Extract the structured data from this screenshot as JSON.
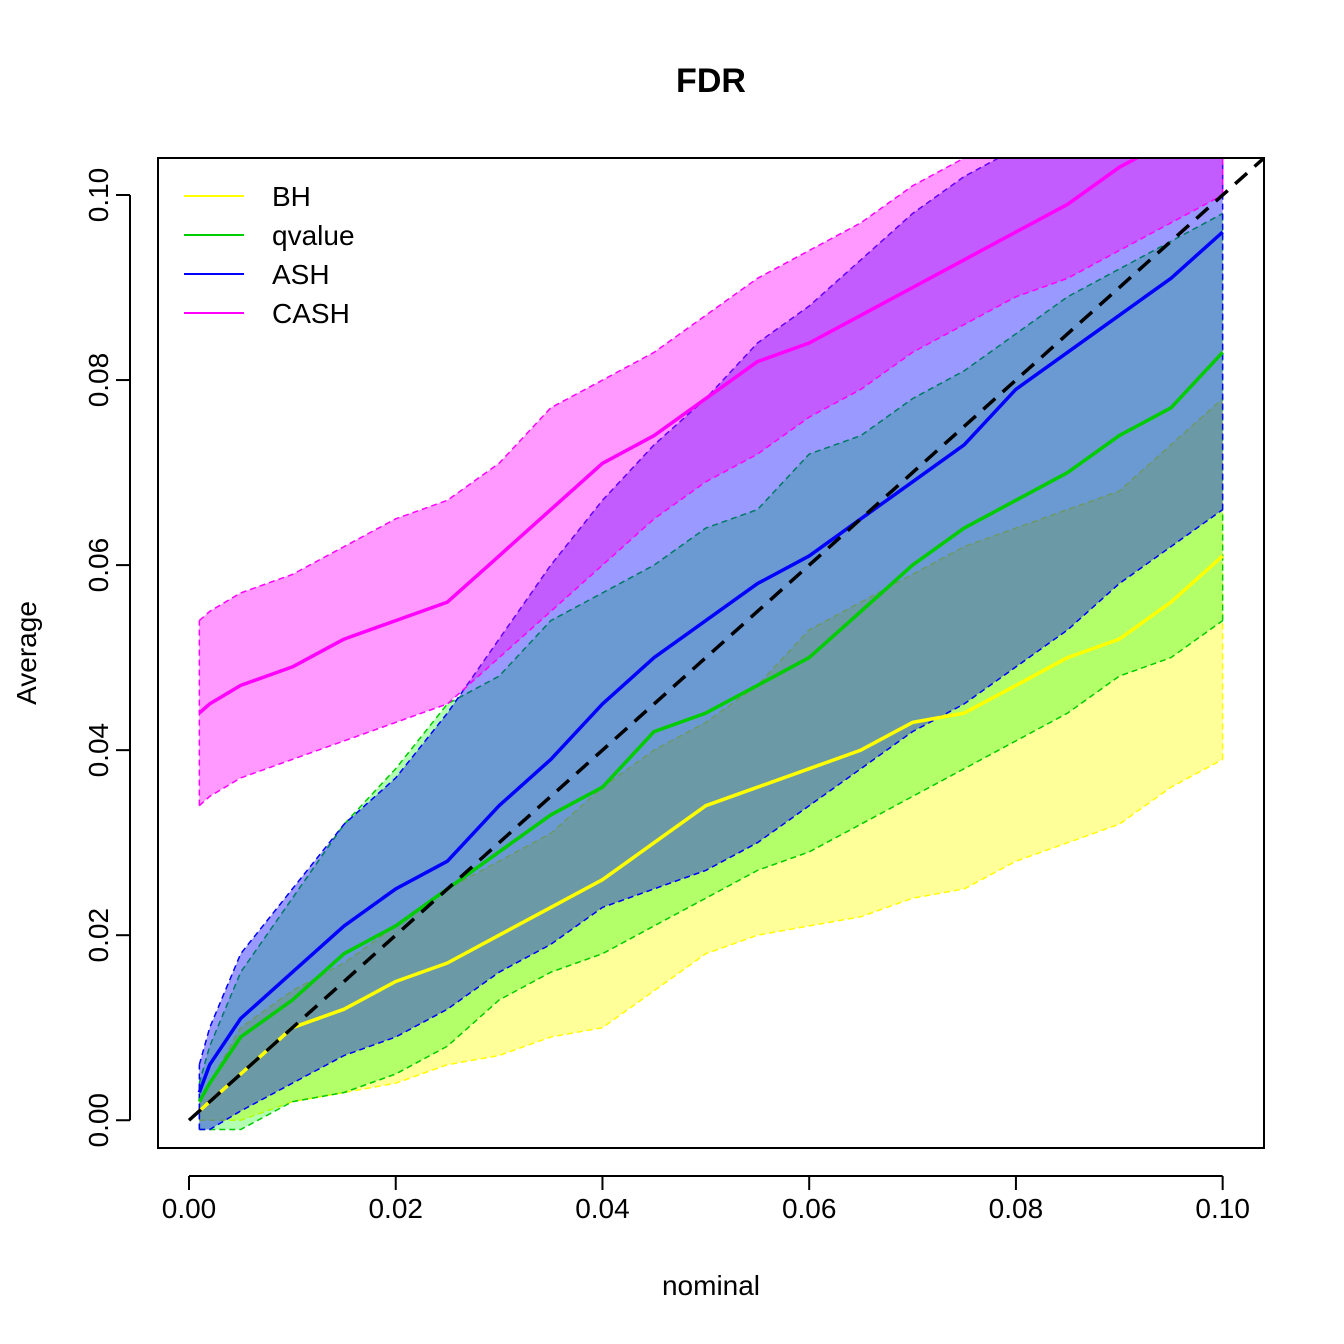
{
  "chart_data": {
    "type": "area",
    "title": "FDR",
    "xlabel": "nominal",
    "ylabel": "Average",
    "xlim": [
      -0.003,
      0.104
    ],
    "ylim": [
      -0.003,
      0.104
    ],
    "xticks": [
      0.0,
      0.02,
      0.04,
      0.06,
      0.08,
      0.1
    ],
    "xtick_labels": [
      "0.00",
      "0.02",
      "0.04",
      "0.06",
      "0.08",
      "0.10"
    ],
    "yticks": [
      0.0,
      0.02,
      0.04,
      0.06,
      0.08,
      0.1
    ],
    "ytick_labels": [
      "0.00",
      "0.02",
      "0.04",
      "0.06",
      "0.08",
      "0.10"
    ],
    "grid": false,
    "legend_position": "top-left",
    "reference_line": {
      "style": "dashed",
      "color": "#000000",
      "x": [
        0.0,
        0.104
      ],
      "y": [
        0.0,
        0.104
      ]
    },
    "x": [
      0.001,
      0.002,
      0.005,
      0.01,
      0.015,
      0.02,
      0.025,
      0.03,
      0.035,
      0.04,
      0.045,
      0.05,
      0.055,
      0.06,
      0.065,
      0.07,
      0.075,
      0.08,
      0.085,
      0.09,
      0.095,
      0.1
    ],
    "series": [
      {
        "name": "BH",
        "color": "#ffff00",
        "fill": "rgba(255,255,0,0.40)",
        "mean": [
          0.001,
          0.002,
          0.005,
          0.01,
          0.012,
          0.015,
          0.017,
          0.02,
          0.023,
          0.026,
          0.03,
          0.034,
          0.036,
          0.038,
          0.04,
          0.043,
          0.044,
          0.047,
          0.05,
          0.052,
          0.056,
          0.061
        ],
        "lower": [
          0.0,
          0.0,
          0.0,
          0.002,
          0.003,
          0.004,
          0.006,
          0.007,
          0.009,
          0.01,
          0.014,
          0.018,
          0.02,
          0.021,
          0.022,
          0.024,
          0.025,
          0.028,
          0.03,
          0.032,
          0.036,
          0.039
        ],
        "upper": [
          0.002,
          0.004,
          0.01,
          0.014,
          0.017,
          0.021,
          0.025,
          0.028,
          0.031,
          0.036,
          0.04,
          0.043,
          0.047,
          0.053,
          0.056,
          0.059,
          0.062,
          0.064,
          0.066,
          0.068,
          0.073,
          0.078
        ]
      },
      {
        "name": "qvalue",
        "color": "#00cc00",
        "fill": "rgba(0,255,0,0.30)",
        "mean": [
          0.002,
          0.004,
          0.009,
          0.013,
          0.018,
          0.021,
          0.025,
          0.029,
          0.033,
          0.036,
          0.042,
          0.044,
          0.047,
          0.05,
          0.055,
          0.06,
          0.064,
          0.067,
          0.07,
          0.074,
          0.077,
          0.083
        ],
        "lower": [
          -0.001,
          -0.001,
          -0.001,
          0.002,
          0.003,
          0.005,
          0.008,
          0.013,
          0.016,
          0.018,
          0.021,
          0.024,
          0.027,
          0.029,
          0.032,
          0.035,
          0.038,
          0.041,
          0.044,
          0.048,
          0.05,
          0.054
        ],
        "upper": [
          0.004,
          0.008,
          0.016,
          0.024,
          0.032,
          0.038,
          0.045,
          0.048,
          0.054,
          0.057,
          0.06,
          0.064,
          0.066,
          0.072,
          0.074,
          0.078,
          0.081,
          0.085,
          0.089,
          0.092,
          0.095,
          0.098
        ]
      },
      {
        "name": "ASH",
        "color": "#0000ff",
        "fill": "rgba(0,0,255,0.40)",
        "mean": [
          0.003,
          0.006,
          0.011,
          0.016,
          0.021,
          0.025,
          0.028,
          0.034,
          0.039,
          0.045,
          0.05,
          0.054,
          0.058,
          0.061,
          0.065,
          0.069,
          0.073,
          0.079,
          0.083,
          0.087,
          0.091,
          0.096
        ],
        "lower": [
          -0.001,
          -0.001,
          0.001,
          0.004,
          0.007,
          0.009,
          0.012,
          0.016,
          0.019,
          0.023,
          0.025,
          0.027,
          0.03,
          0.034,
          0.038,
          0.042,
          0.045,
          0.049,
          0.053,
          0.058,
          0.062,
          0.066
        ],
        "upper": [
          0.006,
          0.01,
          0.018,
          0.025,
          0.032,
          0.037,
          0.044,
          0.052,
          0.06,
          0.067,
          0.073,
          0.078,
          0.084,
          0.088,
          0.093,
          0.098,
          0.102,
          0.105,
          0.108,
          0.111,
          0.113,
          0.114
        ]
      },
      {
        "name": "CASH",
        "color": "#ff00ff",
        "fill": "rgba(255,0,255,0.40)",
        "mean": [
          0.044,
          0.045,
          0.047,
          0.049,
          0.052,
          0.054,
          0.056,
          0.061,
          0.066,
          0.071,
          0.074,
          0.078,
          0.082,
          0.084,
          0.087,
          0.09,
          0.093,
          0.096,
          0.099,
          0.103,
          0.106,
          0.108
        ],
        "lower": [
          0.034,
          0.035,
          0.037,
          0.039,
          0.041,
          0.043,
          0.045,
          0.05,
          0.055,
          0.06,
          0.065,
          0.069,
          0.072,
          0.076,
          0.079,
          0.083,
          0.086,
          0.089,
          0.091,
          0.094,
          0.097,
          0.1
        ],
        "upper": [
          0.054,
          0.055,
          0.057,
          0.059,
          0.062,
          0.065,
          0.067,
          0.071,
          0.077,
          0.08,
          0.083,
          0.087,
          0.091,
          0.094,
          0.097,
          0.101,
          0.104,
          0.107,
          0.11,
          0.112,
          0.114,
          0.116
        ]
      }
    ]
  }
}
